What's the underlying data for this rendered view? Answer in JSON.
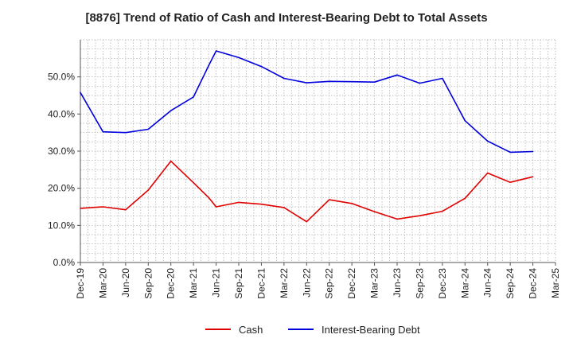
{
  "chart_data": {
    "type": "line",
    "title": "[8876]  Trend of Ratio of Cash and Interest-Bearing Debt to Total Assets",
    "xlabel": "",
    "ylabel": "",
    "x_ticks": [
      "Dec-19",
      "Mar-20",
      "Jun-20",
      "Sep-20",
      "Dec-20",
      "Mar-21",
      "Jun-21",
      "Sep-21",
      "Dec-21",
      "Mar-22",
      "Jun-22",
      "Sep-22",
      "Dec-22",
      "Mar-23",
      "Jun-23",
      "Sep-23",
      "Dec-23",
      "Mar-24",
      "Jun-24",
      "Sep-24",
      "Dec-24",
      "Mar-25"
    ],
    "y_ticks": [
      "0.0%",
      "10.0%",
      "20.0%",
      "30.0%",
      "40.0%",
      "50.0%"
    ],
    "ylim": [
      0,
      60
    ],
    "grid": true,
    "legend_position": "bottom",
    "series": [
      {
        "name": "Cash",
        "color": "#e00000",
        "points": [
          [
            "Dec-19",
            14.6
          ],
          [
            "Mar-20",
            15.0
          ],
          [
            "Jun-20",
            14.2
          ],
          [
            "Sep-20",
            19.5
          ],
          [
            "Dec-20",
            27.3
          ],
          [
            "Mar-21",
            21.5
          ],
          [
            "May-21",
            17.5
          ],
          [
            "Jun-21",
            15.0
          ],
          [
            "Sep-21",
            16.2
          ],
          [
            "Dec-21",
            15.7
          ],
          [
            "Mar-22",
            14.8
          ],
          [
            "Jun-22",
            11.0
          ],
          [
            "Sep-22",
            16.9
          ],
          [
            "Dec-22",
            15.9
          ],
          [
            "Mar-23",
            13.7
          ],
          [
            "Jun-23",
            11.7
          ],
          [
            "Sep-23",
            12.6
          ],
          [
            "Dec-23",
            13.8
          ],
          [
            "Mar-24",
            17.3
          ],
          [
            "Jun-24",
            24.1
          ],
          [
            "Sep-24",
            21.6
          ],
          [
            "Dec-24",
            23.1
          ]
        ]
      },
      {
        "name": "Interest-Bearing Debt",
        "color": "#0000dd",
        "points": [
          [
            "Dec-19",
            45.8
          ],
          [
            "Mar-20",
            35.2
          ],
          [
            "Jun-20",
            35.0
          ],
          [
            "Sep-20",
            35.9
          ],
          [
            "Dec-20",
            40.9
          ],
          [
            "Mar-21",
            44.6
          ],
          [
            "May-21",
            53.0
          ],
          [
            "Jun-21",
            57.0
          ],
          [
            "Sep-21",
            55.2
          ],
          [
            "Dec-21",
            52.8
          ],
          [
            "Mar-22",
            49.6
          ],
          [
            "Jun-22",
            48.4
          ],
          [
            "Sep-22",
            48.8
          ],
          [
            "Dec-22",
            48.7
          ],
          [
            "Mar-23",
            48.6
          ],
          [
            "Jun-23",
            50.5
          ],
          [
            "Sep-23",
            48.3
          ],
          [
            "Dec-23",
            49.6
          ],
          [
            "Mar-24",
            38.2
          ],
          [
            "Jun-24",
            32.7
          ],
          [
            "Sep-24",
            29.7
          ],
          [
            "Dec-24",
            29.9
          ]
        ]
      }
    ]
  }
}
